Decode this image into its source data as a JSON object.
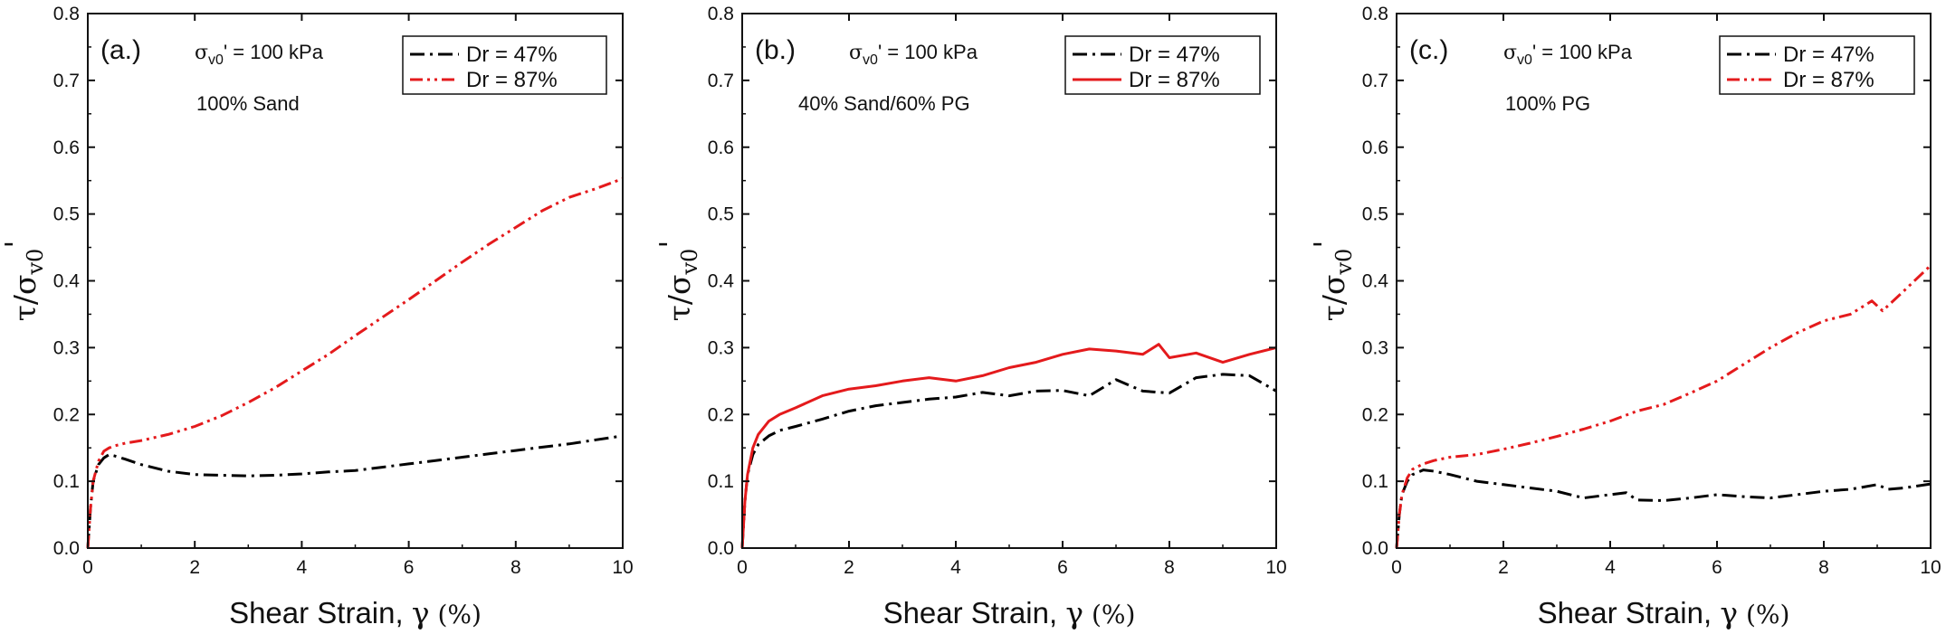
{
  "figure": {
    "y_label_symbol": "τ/σ",
    "y_label_sub": "v0",
    "y_label_prime": "'",
    "x_label_text": "Shear Strain, ",
    "x_label_symbol": "γ",
    "x_label_unit": " (%)",
    "stress_symbol": "σ",
    "stress_sub": "v0",
    "stress_rest": "' = 100 kPa"
  },
  "colors": {
    "loose": "#000000",
    "dense": "#e41a1c"
  },
  "chart_data": [
    {
      "type": "line",
      "panel_label": "(a.)",
      "material": "100% Sand",
      "xlim": [
        0,
        10
      ],
      "ylim": [
        0,
        0.8
      ],
      "xticks": [
        0,
        2,
        4,
        6,
        8,
        10
      ],
      "yticks": [
        0.0,
        0.1,
        0.2,
        0.3,
        0.4,
        0.5,
        0.6,
        0.7,
        0.8
      ],
      "ytick_labels": [
        "0.0",
        "0.1",
        "0.2",
        "0.3",
        "0.4",
        "0.5",
        "0.6",
        "0.7",
        "0.8"
      ],
      "legend_position": "top-right",
      "series": [
        {
          "name": "Dr = 47%",
          "style": "dash-dot",
          "color": "#000000",
          "x": [
            0,
            0.05,
            0.1,
            0.2,
            0.3,
            0.4,
            0.5,
            0.7,
            1.0,
            1.5,
            2,
            2.5,
            3,
            3.5,
            4,
            4.5,
            5,
            5.5,
            6,
            6.5,
            7,
            7.5,
            8,
            8.5,
            9,
            9.5,
            10
          ],
          "y": [
            0,
            0.06,
            0.1,
            0.125,
            0.135,
            0.14,
            0.138,
            0.133,
            0.125,
            0.115,
            0.11,
            0.109,
            0.108,
            0.109,
            0.111,
            0.114,
            0.116,
            0.121,
            0.126,
            0.131,
            0.136,
            0.141,
            0.146,
            0.151,
            0.156,
            0.162,
            0.168
          ]
        },
        {
          "name": "Dr = 87%",
          "style": "dash-dot-dot",
          "color": "#e41a1c",
          "x": [
            0,
            0.05,
            0.1,
            0.2,
            0.3,
            0.4,
            0.5,
            0.7,
            1.0,
            1.5,
            2,
            2.5,
            3,
            3.5,
            4,
            4.5,
            5,
            5.5,
            6,
            6.5,
            7,
            7.5,
            8,
            8.5,
            9,
            9.5,
            10
          ],
          "y": [
            0,
            0.06,
            0.1,
            0.13,
            0.145,
            0.15,
            0.153,
            0.157,
            0.161,
            0.17,
            0.182,
            0.198,
            0.218,
            0.24,
            0.265,
            0.29,
            0.318,
            0.345,
            0.372,
            0.4,
            0.428,
            0.455,
            0.48,
            0.505,
            0.525,
            0.538,
            0.553
          ]
        }
      ]
    },
    {
      "type": "line",
      "panel_label": "(b.)",
      "material": "40% Sand/60% PG",
      "xlim": [
        0,
        10
      ],
      "ylim": [
        0,
        0.8
      ],
      "xticks": [
        0,
        2,
        4,
        6,
        8,
        10
      ],
      "yticks": [
        0.0,
        0.1,
        0.2,
        0.3,
        0.4,
        0.5,
        0.6,
        0.7,
        0.8
      ],
      "ytick_labels": [
        "0.0",
        "0.1",
        "0.2",
        "0.3",
        "0.4",
        "0.5",
        "0.6",
        "0.7",
        "0.8"
      ],
      "legend_position": "top-right",
      "series": [
        {
          "name": "Dr = 47%",
          "style": "dash-dot",
          "color": "#000000",
          "x": [
            0,
            0.05,
            0.1,
            0.2,
            0.3,
            0.5,
            0.7,
            1.0,
            1.5,
            2,
            2.5,
            3,
            3.5,
            4,
            4.5,
            5,
            5.5,
            6,
            6.5,
            7,
            7.5,
            8,
            8.5,
            9,
            9.5,
            10
          ],
          "y": [
            0,
            0.07,
            0.11,
            0.14,
            0.155,
            0.168,
            0.176,
            0.182,
            0.193,
            0.205,
            0.213,
            0.218,
            0.223,
            0.226,
            0.233,
            0.228,
            0.235,
            0.236,
            0.228,
            0.252,
            0.235,
            0.232,
            0.255,
            0.26,
            0.258,
            0.235
          ]
        },
        {
          "name": "Dr = 87%",
          "style": "solid",
          "color": "#e41a1c",
          "x": [
            0,
            0.05,
            0.1,
            0.2,
            0.3,
            0.5,
            0.7,
            1.0,
            1.5,
            2,
            2.5,
            3,
            3.5,
            4,
            4.5,
            5,
            5.5,
            6,
            6.5,
            7,
            7.5,
            7.8,
            8,
            8.5,
            9,
            9.5,
            10
          ],
          "y": [
            0,
            0.07,
            0.11,
            0.15,
            0.17,
            0.19,
            0.2,
            0.21,
            0.228,
            0.238,
            0.243,
            0.25,
            0.255,
            0.25,
            0.258,
            0.27,
            0.278,
            0.29,
            0.298,
            0.295,
            0.29,
            0.305,
            0.285,
            0.292,
            0.278,
            0.29,
            0.3
          ]
        }
      ]
    },
    {
      "type": "line",
      "panel_label": "(c.)",
      "material": "100% PG",
      "xlim": [
        0,
        10
      ],
      "ylim": [
        0,
        0.8
      ],
      "xticks": [
        0,
        2,
        4,
        6,
        8,
        10
      ],
      "yticks": [
        0.0,
        0.1,
        0.2,
        0.3,
        0.4,
        0.5,
        0.6,
        0.7,
        0.8
      ],
      "ytick_labels": [
        "0.0",
        "0.1",
        "0.2",
        "0.3",
        "0.4",
        "0.5",
        "0.6",
        "0.7",
        "0.8"
      ],
      "legend_position": "top-right",
      "series": [
        {
          "name": "Dr = 47%",
          "style": "dash-dot",
          "color": "#000000",
          "x": [
            0,
            0.05,
            0.1,
            0.2,
            0.3,
            0.5,
            0.7,
            1.0,
            1.5,
            2,
            2.5,
            3,
            3.5,
            4,
            4.3,
            4.5,
            5,
            5.5,
            6,
            6.5,
            7,
            7.5,
            8,
            8.5,
            9,
            9.2,
            9.5,
            10
          ],
          "y": [
            0,
            0.05,
            0.08,
            0.1,
            0.11,
            0.117,
            0.115,
            0.11,
            0.1,
            0.095,
            0.09,
            0.085,
            0.075,
            0.08,
            0.083,
            0.072,
            0.071,
            0.075,
            0.08,
            0.077,
            0.075,
            0.08,
            0.085,
            0.088,
            0.095,
            0.088,
            0.09,
            0.096
          ]
        },
        {
          "name": "Dr = 87%",
          "style": "dash-dot-dot",
          "color": "#e41a1c",
          "x": [
            0,
            0.05,
            0.1,
            0.2,
            0.3,
            0.5,
            0.7,
            1.0,
            1.5,
            2,
            2.5,
            3,
            3.5,
            4,
            4.5,
            5,
            5.5,
            6,
            6.5,
            7,
            7.5,
            8,
            8.5,
            8.9,
            9.1,
            9.5,
            10
          ],
          "y": [
            0,
            0.05,
            0.08,
            0.105,
            0.118,
            0.126,
            0.131,
            0.136,
            0.14,
            0.148,
            0.157,
            0.167,
            0.178,
            0.19,
            0.205,
            0.215,
            0.232,
            0.25,
            0.275,
            0.3,
            0.322,
            0.34,
            0.35,
            0.37,
            0.355,
            0.385,
            0.423
          ]
        }
      ]
    }
  ]
}
